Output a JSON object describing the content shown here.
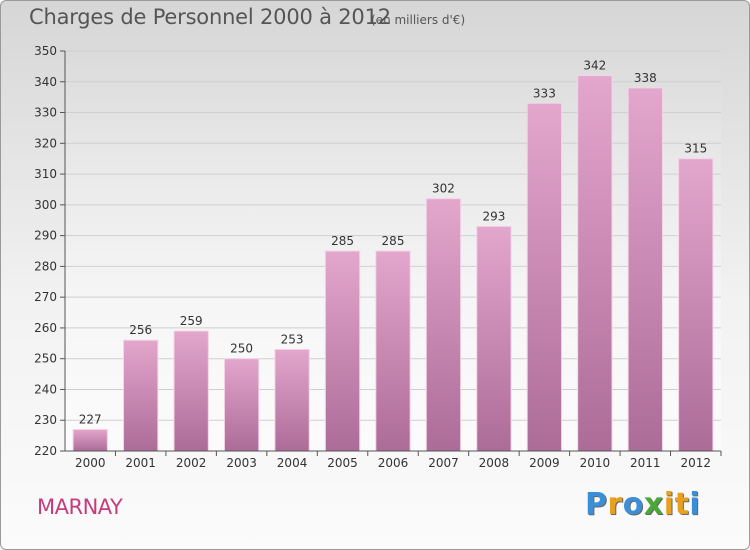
{
  "title": "Charges de Personnel 2000 à 2012",
  "subtitle": "(en milliers d'€)",
  "town": "MARNAY",
  "logo": {
    "letters": [
      "P",
      "r",
      "o",
      "x",
      "i",
      "t",
      "i"
    ],
    "colors": [
      "#3a8fd6",
      "#e8a020",
      "#3a8fd6",
      "#4aa838",
      "#e8a020",
      "#e8a020",
      "#3a8fd6"
    ]
  },
  "colors": {
    "bar_top": "#e3a6cc",
    "bar_bottom": "#ac6c98",
    "grid": "#cfcfcf"
  },
  "chart_data": {
    "type": "bar",
    "categories": [
      "2000",
      "2001",
      "2002",
      "2003",
      "2004",
      "2005",
      "2006",
      "2007",
      "2008",
      "2009",
      "2010",
      "2011",
      "2012"
    ],
    "values": [
      227,
      256,
      259,
      250,
      253,
      285,
      285,
      302,
      293,
      333,
      342,
      338,
      315
    ],
    "ylim": [
      220,
      350
    ],
    "yticks": [
      220,
      230,
      240,
      250,
      260,
      270,
      280,
      290,
      300,
      310,
      320,
      330,
      340,
      350
    ],
    "grid": true
  }
}
